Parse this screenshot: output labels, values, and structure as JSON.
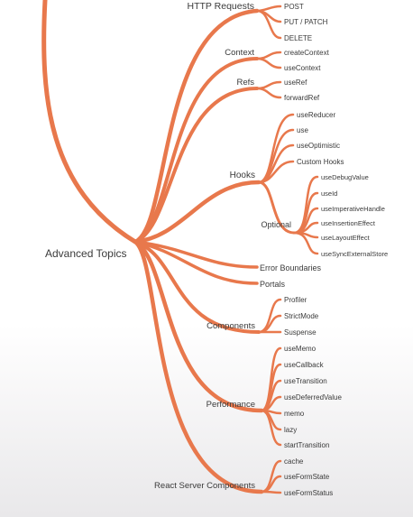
{
  "root": {
    "label": "Advanced Topics"
  },
  "colors": {
    "branch": "#e8784c",
    "text": "#3a3a3a"
  },
  "http": {
    "label": "HTTP Requests",
    "items": [
      "POST",
      "PUT / PATCH",
      "DELETE"
    ]
  },
  "context": {
    "label": "Context",
    "items": [
      "createContext",
      "useContext"
    ]
  },
  "refs": {
    "label": "Refs",
    "items": [
      "useRef",
      "forwardRef"
    ]
  },
  "hooks": {
    "label": "Hooks",
    "items": [
      "useReducer",
      "use",
      "useOptimistic",
      "Custom Hooks"
    ],
    "optional": {
      "label": "Optional",
      "items": [
        "useDebugValue",
        "useId",
        "useImperativeHandle",
        "useInsertionEffect",
        "useLayoutEffect",
        "useSyncExternalStore"
      ]
    }
  },
  "error_boundaries": {
    "label": "Error Boundaries"
  },
  "portals": {
    "label": "Portals"
  },
  "components": {
    "label": "Components",
    "items": [
      "Profiler",
      "StrictMode",
      "Suspense"
    ]
  },
  "performance": {
    "label": "Performance",
    "items": [
      "useMemo",
      "useCallback",
      "useTransition",
      "useDeferredValue",
      "memo",
      "lazy",
      "startTransition"
    ]
  },
  "rsc": {
    "label": "React Server Components",
    "items": [
      "cache",
      "useFormState",
      "useFormStatus"
    ]
  }
}
